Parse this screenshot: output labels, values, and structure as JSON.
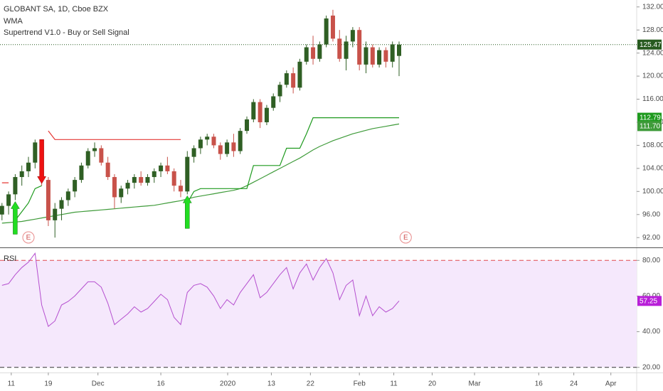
{
  "chart_data": [
    {
      "type": "candlestick",
      "title": "GLOBANT SA, 1D, Cboe BZX",
      "indicator_labels": [
        "WMA",
        "Supertrend V1.0 - Buy or Sell Signal"
      ],
      "open": [
        96,
        97.5,
        99.5,
        102.5,
        103.5,
        105,
        108,
        102,
        95,
        97,
        98.5,
        100,
        102,
        104.5,
        107,
        107.5,
        105,
        102.5,
        99,
        100.5,
        101.5,
        102.5,
        101.5,
        102.5,
        103.5,
        104.5,
        103.5,
        101,
        100,
        106,
        107.5,
        109,
        109.5,
        108,
        106.5,
        108.5,
        107,
        110.5,
        112.5,
        115.5,
        112,
        114.5,
        116.5,
        118.5,
        120.5,
        118,
        122.5,
        125,
        123,
        125.5,
        130.5,
        126.5,
        123,
        126,
        128,
        122,
        125,
        122,
        124.5,
        122.5,
        123.5
      ],
      "high": [
        98,
        100,
        103,
        104.5,
        106,
        109,
        109,
        102.5,
        98,
        99,
        100.5,
        102.5,
        105,
        107.5,
        108.5,
        108,
        106,
        103,
        101,
        102,
        103,
        103.5,
        103,
        104,
        105,
        106,
        104,
        102,
        107,
        108,
        109.5,
        110,
        110,
        108.5,
        109,
        110,
        111,
        113,
        116,
        116,
        115,
        117,
        119,
        121,
        121.5,
        123,
        125.5,
        127,
        126,
        130.5,
        131.5,
        128,
        127,
        128.5,
        128.5,
        126,
        125.5,
        125,
        125,
        126,
        126
      ],
      "low": [
        95,
        96,
        98.5,
        101,
        102.5,
        104,
        101,
        94,
        92,
        95,
        97.5,
        99,
        101.5,
        104,
        106,
        104.5,
        102,
        97,
        98,
        99.5,
        100.5,
        101,
        101,
        101.5,
        102.5,
        103,
        100,
        99,
        99.5,
        105,
        106.5,
        108,
        107.5,
        105.5,
        106,
        106,
        106.5,
        110,
        112,
        111,
        111.5,
        114,
        115.5,
        118,
        117,
        117.5,
        122,
        122,
        122.5,
        125,
        126,
        122.5,
        121,
        125,
        121,
        120.5,
        121.5,
        121.5,
        121.5,
        121.5,
        120
      ],
      "close": [
        97.5,
        99.5,
        102.5,
        103.5,
        105,
        108.5,
        102,
        95,
        97,
        98.5,
        100,
        102,
        104.5,
        107,
        107.5,
        105,
        102.5,
        99,
        100.5,
        101.5,
        102.5,
        101.5,
        102.5,
        103.5,
        104.5,
        103.5,
        101,
        100,
        106,
        107.5,
        109,
        109.5,
        108,
        106.5,
        108.5,
        107,
        110.5,
        112.5,
        115.5,
        112,
        114.5,
        116.5,
        118.5,
        120.5,
        118,
        122.5,
        125,
        123,
        125.5,
        130,
        126.5,
        123,
        126,
        128,
        122,
        125,
        122,
        124.5,
        122.5,
        125.5,
        125.47
      ],
      "up_color": "#2f5f24",
      "down_color": "#c8524a",
      "last_price_color": "#275a1f",
      "wma": {
        "color": "#3f9b3a",
        "last_value_label": "111.70",
        "values": [
          94.5,
          94.6,
          94.7,
          94.8,
          95,
          95.2,
          95.4,
          95.6,
          95.8,
          96,
          96.2,
          96.4,
          96.5,
          96.6,
          96.7,
          96.8,
          96.9,
          97,
          97.1,
          97.2,
          97.3,
          97.4,
          97.5,
          97.6,
          97.8,
          98,
          98.2,
          98.4,
          98.7,
          99,
          99.2,
          99.4,
          99.6,
          99.8,
          100,
          100.2,
          100.5,
          101,
          101.6,
          102.2,
          102.8,
          103.4,
          104,
          104.6,
          105.2,
          105.8,
          106.5,
          107.2,
          107.8,
          108.3,
          108.8,
          109.2,
          109.6,
          110,
          110.3,
          110.6,
          110.9,
          111.1,
          111.3,
          111.5,
          111.7
        ]
      },
      "supertrend": {
        "up_color": "#1e9a1e",
        "down_color": "#e53935",
        "up": [
          null,
          null,
          95,
          96.5,
          98,
          100.5,
          101,
          null,
          null,
          null,
          null,
          null,
          null,
          null,
          null,
          null,
          null,
          null,
          null,
          null,
          null,
          null,
          null,
          null,
          null,
          null,
          null,
          null,
          98,
          100,
          100.5,
          100.5,
          100.5,
          100.5,
          100.5,
          100.5,
          100.5,
          100.5,
          104.5,
          104.5,
          104.5,
          104.5,
          104.5,
          107.5,
          107.5,
          107.5,
          110,
          112.79,
          112.79,
          112.79,
          112.79,
          112.79,
          112.79,
          112.79,
          112.79,
          112.79,
          112.79,
          112.79,
          112.79,
          112.79,
          112.79
        ],
        "down": [
          101.5,
          101.5,
          null,
          null,
          null,
          null,
          null,
          110.5,
          109,
          109,
          109,
          109,
          109,
          109,
          109,
          109,
          109,
          109,
          109,
          109,
          109,
          109,
          109,
          109,
          109,
          109,
          109,
          109,
          null,
          null,
          null,
          null,
          null,
          null,
          null,
          null,
          null,
          null,
          null,
          null,
          null,
          null,
          null,
          null,
          null,
          null,
          null,
          null,
          null,
          null,
          null,
          null,
          null,
          null,
          null,
          null,
          null,
          null,
          null,
          null,
          null
        ]
      },
      "buy_signals": [
        2,
        28
      ],
      "sell_signals": [
        6
      ],
      "buy_color": "#22dd22",
      "sell_color": "#ee1111",
      "earnings": [
        {
          "x": 4,
          "label": "E"
        },
        {
          "x": 61,
          "label": "E"
        }
      ],
      "xlim": [
        -0.3,
        95.9
      ],
      "xticks": [
        {
          "value": 1.4,
          "label": "11"
        },
        {
          "value": 7,
          "label": "19"
        },
        {
          "value": 14.5,
          "label": "Dec"
        },
        {
          "value": 24,
          "label": "16"
        },
        {
          "value": 34.1,
          "label": "2020"
        },
        {
          "value": 40.7,
          "label": "13"
        },
        {
          "value": 46.6,
          "label": "22"
        },
        {
          "value": 54,
          "label": "Feb"
        },
        {
          "value": 59.2,
          "label": "11"
        },
        {
          "value": 65,
          "label": "20"
        },
        {
          "value": 71.4,
          "label": "Mar"
        },
        {
          "value": 81.1,
          "label": "16"
        },
        {
          "value": 86.4,
          "label": "24"
        },
        {
          "value": 92,
          "label": "Apr"
        }
      ],
      "ylim": [
        90.3,
        133.2
      ],
      "yticks": [
        {
          "value": 92,
          "label": "92.00"
        },
        {
          "value": 96,
          "label": "96.00"
        },
        {
          "value": 100,
          "label": "100.00"
        },
        {
          "value": 104,
          "label": "104.00"
        },
        {
          "value": 108,
          "label": "108.00"
        },
        {
          "value": 112,
          "label": "112.00"
        },
        {
          "value": 116,
          "label": "116.00"
        },
        {
          "value": 120,
          "label": "120.00"
        },
        {
          "value": 124,
          "label": "124.00"
        },
        {
          "value": 128,
          "label": "128.00"
        },
        {
          "value": 132,
          "label": "132.00"
        }
      ],
      "grid": false
    },
    {
      "type": "line",
      "title": "RSI",
      "color": "#b54fcf",
      "band_fill": "#f5e8fc",
      "upper_band": 80,
      "lower_band": 20,
      "upper_color": "#e0484e",
      "lower_color": "#333333",
      "tag_color": "#b81fd8",
      "values": [
        66,
        67,
        72,
        76,
        79,
        84,
        55,
        43,
        46,
        55,
        57,
        60,
        64,
        68,
        68,
        65,
        56,
        44,
        47,
        50,
        54,
        51,
        53,
        57,
        61,
        58,
        48,
        44,
        62,
        66,
        67,
        65,
        60,
        53,
        58,
        55,
        62,
        67,
        72,
        59,
        62,
        67,
        72,
        76,
        64,
        73,
        78,
        69,
        76,
        81,
        73,
        58,
        66,
        69,
        49,
        60,
        49,
        54,
        51,
        53,
        57.25
      ],
      "xlim": [
        -0.3,
        95.9
      ],
      "ylim": [
        17.1,
        86.9
      ],
      "yticks": [
        {
          "value": 80,
          "label": "80.00"
        },
        {
          "value": 60,
          "label": "60.00"
        },
        {
          "value": 40,
          "label": "40.00"
        },
        {
          "value": 20,
          "label": "20.00"
        }
      ]
    }
  ]
}
